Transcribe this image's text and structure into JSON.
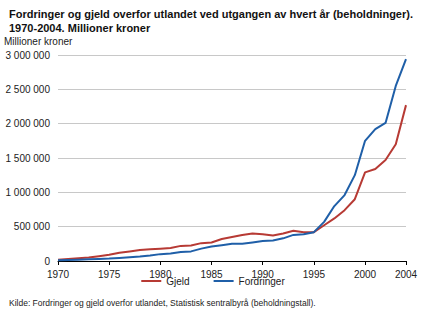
{
  "chart_data": {
    "type": "line",
    "title": "Fordringer og gjeld overfor utlandet ved utgangen av hvert år (beholdninger). 1970-2004. Millioner kroner",
    "y_label": "Millioner kroner",
    "source": "Kilde: Fordringer og gjeld overfor utlandet, Statistisk sentralbyrå (beholdningstall).",
    "x": [
      1970,
      1971,
      1972,
      1973,
      1974,
      1975,
      1976,
      1977,
      1978,
      1979,
      1980,
      1981,
      1982,
      1983,
      1984,
      1985,
      1986,
      1987,
      1988,
      1989,
      1990,
      1991,
      1992,
      1993,
      1994,
      1995,
      1996,
      1997,
      1998,
      1999,
      2000,
      2001,
      2002,
      2003,
      2004
    ],
    "series": [
      {
        "name": "Gjeld",
        "color": "#b73a34",
        "values": [
          20000,
          30000,
          40000,
          50000,
          70000,
          90000,
          120000,
          140000,
          160000,
          170000,
          180000,
          190000,
          220000,
          225000,
          260000,
          270000,
          320000,
          350000,
          380000,
          400000,
          390000,
          370000,
          400000,
          440000,
          420000,
          420000,
          520000,
          620000,
          740000,
          900000,
          1290000,
          1340000,
          1470000,
          1700000,
          2270000
        ]
      },
      {
        "name": "Fordringer",
        "color": "#1f5fa8",
        "values": [
          10000,
          15000,
          20000,
          25000,
          30000,
          35000,
          45000,
          55000,
          65000,
          80000,
          100000,
          110000,
          130000,
          140000,
          180000,
          210000,
          230000,
          250000,
          250000,
          270000,
          290000,
          300000,
          330000,
          380000,
          390000,
          420000,
          570000,
          800000,
          960000,
          1250000,
          1750000,
          1920000,
          2010000,
          2550000,
          2940000
        ]
      }
    ],
    "xlim": [
      1970,
      2004
    ],
    "xticks": [
      1970,
      1975,
      1980,
      1985,
      1990,
      1995,
      2000,
      2004
    ],
    "ylim": [
      0,
      3000000
    ],
    "yticks": [
      0,
      {
        "value": 500000,
        "label": "500 000"
      },
      {
        "value": 1000000,
        "label": "1 000 000"
      },
      {
        "value": 1500000,
        "label": "1 500 000"
      },
      {
        "value": 2000000,
        "label": "2 000 000"
      },
      {
        "value": 2500000,
        "label": "2 500 000"
      },
      {
        "value": 3000000,
        "label": "3 000 000"
      }
    ],
    "grid": true,
    "legend": "bottom"
  }
}
